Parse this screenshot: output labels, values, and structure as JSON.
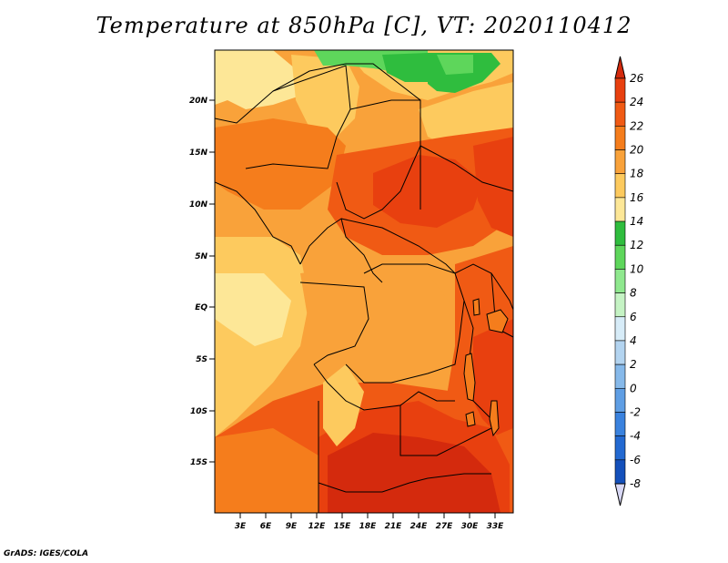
{
  "title": "Temperature at 850hPa [C], VT: 2020110412",
  "credit": "GrADS: IGES/COLA",
  "map": {
    "lon_labels": [
      "3E",
      "6E",
      "9E",
      "12E",
      "15E",
      "18E",
      "21E",
      "24E",
      "27E",
      "30E",
      "33E"
    ],
    "lat_labels": [
      "20N",
      "15N",
      "10N",
      "5N",
      "EQ",
      "5S",
      "10S",
      "15S"
    ]
  },
  "colorbar": {
    "labels": [
      "26",
      "24",
      "22",
      "20",
      "18",
      "16",
      "14",
      "12",
      "10",
      "8",
      "6",
      "4",
      "2",
      "0",
      "-2",
      "-4",
      "-6",
      "-8"
    ],
    "colors": [
      "#d42a0d",
      "#e8400f",
      "#f05a14",
      "#f57d1c",
      "#f9a23a",
      "#fdca5e",
      "#fde797",
      "#fbf7c4",
      "#2fbd3e",
      "#5ed65b",
      "#8fe88e",
      "#c5f3c4",
      "#d7ecf8",
      "#b3d4f0",
      "#86b9ea",
      "#5f9ee4",
      "#3a82de",
      "#2369d1",
      "#1450bb",
      "#0b3aa2",
      "#061f78",
      "#d8d8f5"
    ]
  }
}
